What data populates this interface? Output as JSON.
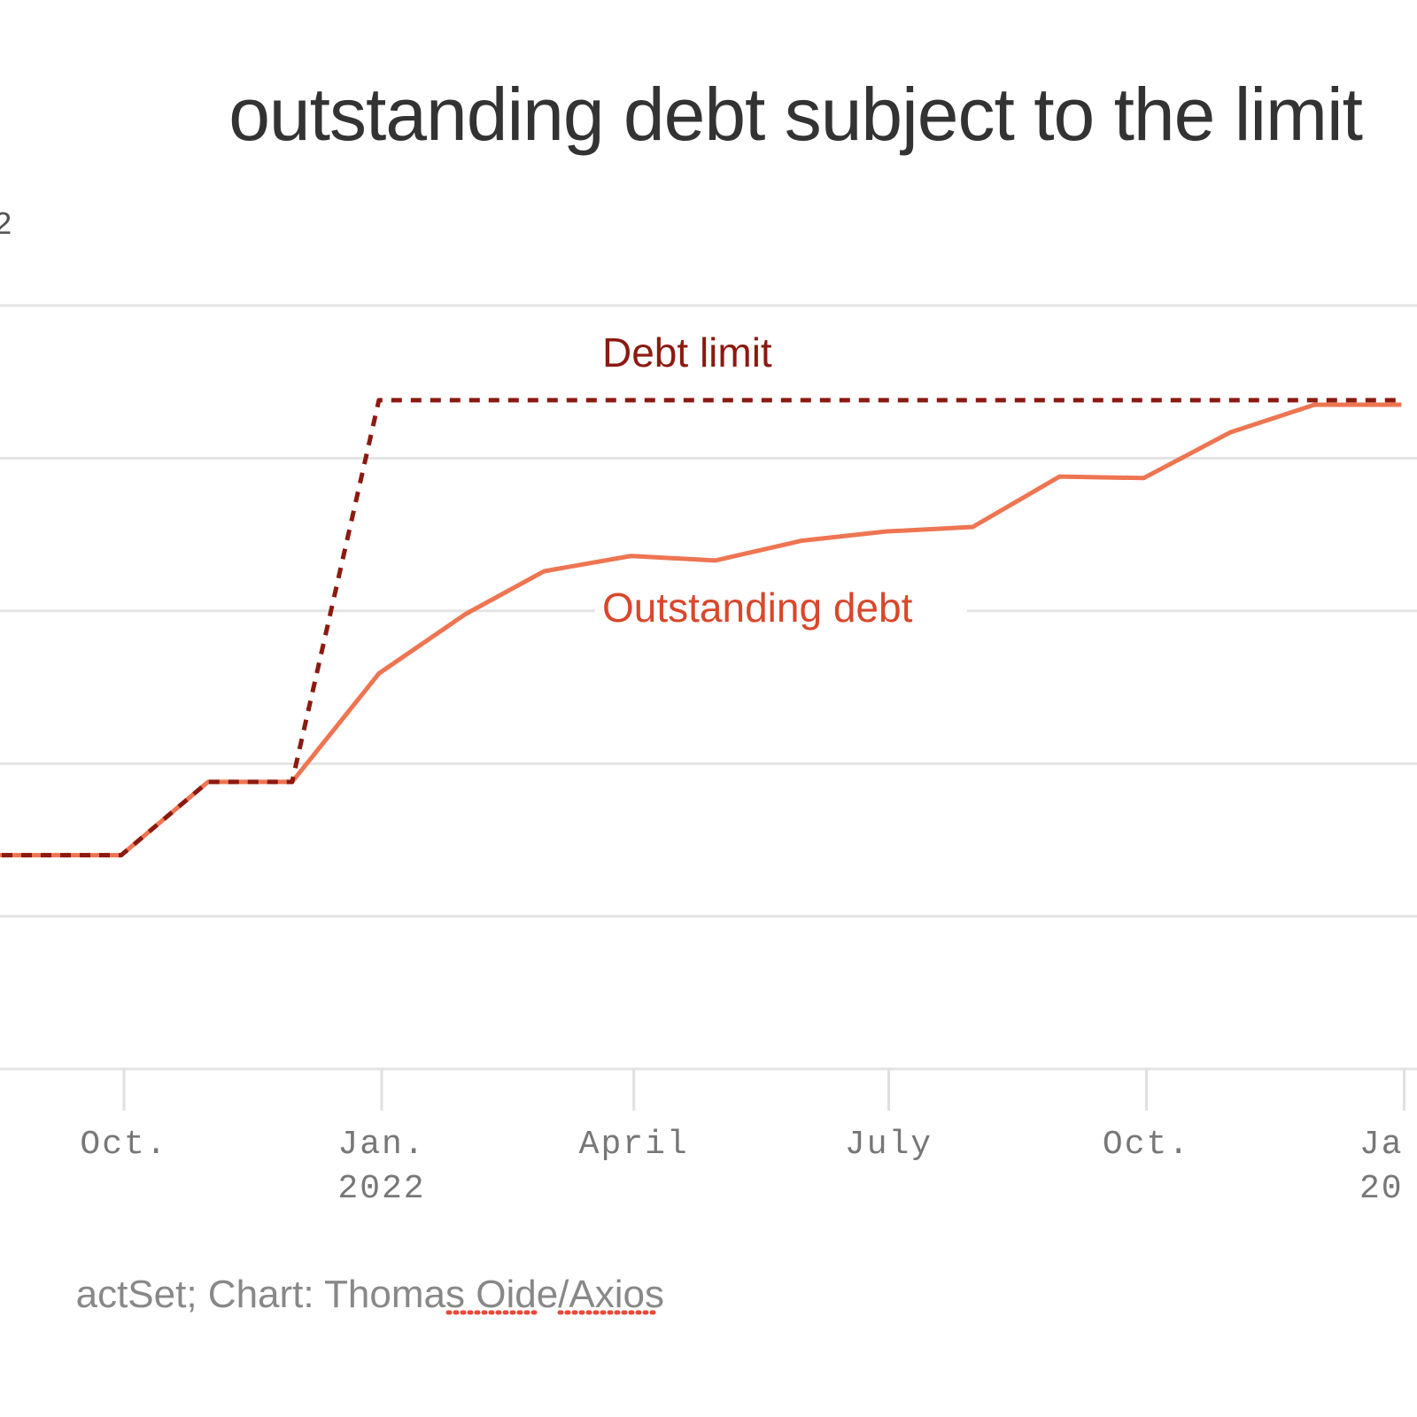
{
  "chart_data": {
    "type": "line",
    "title": "outstanding debt subject to the limit",
    "subtitle": "2",
    "xlabel": "",
    "ylabel": "",
    "ylim": [
      27,
      32
    ],
    "y_units": "trillion dollars (estimated, axis labels not visible)",
    "grid": true,
    "x_ticks": [
      {
        "date": "2021-10-01",
        "label": "Oct.",
        "label2": ""
      },
      {
        "date": "2022-01-01",
        "label": "Jan.",
        "label2": "2022"
      },
      {
        "date": "2022-04-01",
        "label": "April",
        "label2": ""
      },
      {
        "date": "2022-07-01",
        "label": "July",
        "label2": ""
      },
      {
        "date": "2022-10-01",
        "label": "Oct.",
        "label2": ""
      },
      {
        "date": "2023-01-01",
        "label": "Ja",
        "label2": "20"
      }
    ],
    "x": [
      "2021-08-31",
      "2021-09-30",
      "2021-10-31",
      "2021-11-30",
      "2021-12-31",
      "2022-01-31",
      "2022-02-28",
      "2022-03-31",
      "2022-04-30",
      "2022-05-31",
      "2022-06-30",
      "2022-07-31",
      "2022-08-31",
      "2022-09-30",
      "2022-10-31",
      "2022-11-30",
      "2022-12-31"
    ],
    "series": [
      {
        "name": "Debt limit",
        "color": "#8b1a10",
        "style": "dashed",
        "values": [
          28.4,
          28.4,
          28.88,
          28.88,
          31.38,
          31.38,
          31.38,
          31.38,
          31.38,
          31.38,
          31.38,
          31.38,
          31.38,
          31.38,
          31.38,
          31.38,
          31.38
        ]
      },
      {
        "name": "Outstanding debt",
        "color": "#ee7552",
        "style": "solid",
        "values": [
          28.4,
          28.4,
          28.88,
          28.88,
          29.59,
          29.98,
          30.26,
          30.36,
          30.33,
          30.46,
          30.52,
          30.55,
          30.88,
          30.87,
          31.17,
          31.35,
          31.35
        ]
      }
    ],
    "annotations": {
      "limit_label_color": "#8b1a10",
      "debt_label_color": "#d9472b"
    }
  },
  "source": {
    "prefix": "actSet; Chart: Thomas ",
    "name1": "Oide",
    "slash": "/",
    "name2": "Axios"
  }
}
